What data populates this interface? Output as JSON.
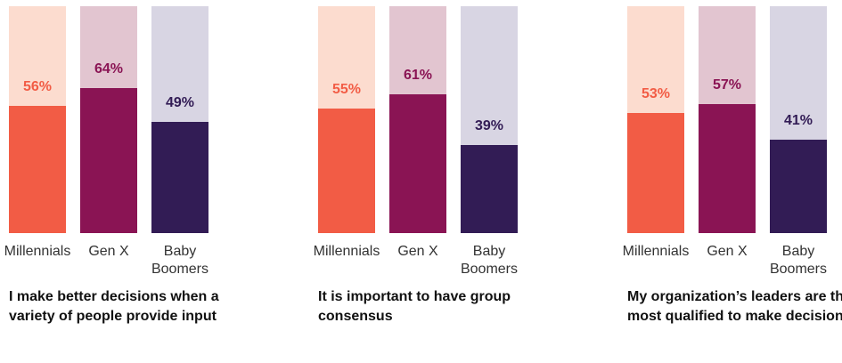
{
  "chart_data": [
    {
      "type": "bar",
      "title": "I make better decisions when a variety of people provide input",
      "categories": [
        "Millennials",
        "Gen X",
        "Baby Boomers"
      ],
      "values": [
        56,
        64,
        49
      ],
      "labels": [
        "56%",
        "64%",
        "49%"
      ],
      "ylim": [
        0,
        100
      ]
    },
    {
      "type": "bar",
      "title": "It is important to have group consensus",
      "categories": [
        "Millennials",
        "Gen X",
        "Baby Boomers"
      ],
      "values": [
        55,
        61,
        39
      ],
      "labels": [
        "55%",
        "61%",
        "39%"
      ],
      "ylim": [
        0,
        100
      ]
    },
    {
      "type": "bar",
      "title": "My organization’s leaders are the most qualified to make decisions",
      "categories": [
        "Millennials",
        "Gen X",
        "Baby Boomers"
      ],
      "values": [
        53,
        57,
        41
      ],
      "labels": [
        "53%",
        "57%",
        "41%"
      ],
      "ylim": [
        0,
        100
      ]
    }
  ],
  "colors": {
    "fill": [
      "#f25c45",
      "#8a1454",
      "#321c55"
    ],
    "background": [
      "#fcdccf",
      "#e2c5d0",
      "#d8d5e3"
    ]
  }
}
